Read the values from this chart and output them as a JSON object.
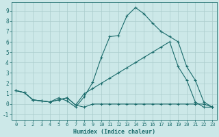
{
  "xlabel": "Humidex (Indice chaleur)",
  "bg_color": "#cce8e8",
  "grid_color": "#aacccc",
  "line_color": "#1a6b6b",
  "xlim": [
    -0.5,
    23.5
  ],
  "ylim": [
    -1.5,
    9.8
  ],
  "xticks": [
    0,
    1,
    2,
    3,
    4,
    5,
    6,
    7,
    8,
    9,
    10,
    11,
    12,
    13,
    14,
    15,
    16,
    17,
    18,
    19,
    20,
    21,
    22,
    23
  ],
  "yticks": [
    -1,
    0,
    1,
    2,
    3,
    4,
    5,
    6,
    7,
    8,
    9
  ],
  "line1_x": [
    0,
    1,
    2,
    3,
    4,
    5,
    6,
    7,
    8,
    9,
    10,
    11,
    12,
    13,
    14,
    15,
    16,
    17,
    18,
    19,
    20,
    21,
    22,
    23
  ],
  "line1_y": [
    1.3,
    1.1,
    0.4,
    0.3,
    0.2,
    0.6,
    0.3,
    -0.3,
    0.7,
    2.1,
    4.5,
    6.5,
    6.6,
    8.5,
    9.3,
    8.7,
    7.8,
    7.0,
    6.5,
    6.0,
    3.6,
    2.3,
    0.2,
    -0.3
  ],
  "line2_x": [
    0,
    1,
    2,
    3,
    4,
    5,
    6,
    7,
    8,
    9,
    10,
    11,
    12,
    13,
    14,
    15,
    16,
    17,
    18,
    19,
    20,
    21,
    22,
    23
  ],
  "line2_y": [
    1.3,
    1.1,
    0.4,
    0.3,
    0.2,
    0.4,
    0.6,
    -0.1,
    -0.3,
    0.0,
    0.0,
    0.0,
    0.0,
    0.0,
    0.0,
    0.0,
    0.0,
    0.0,
    0.0,
    0.0,
    0.0,
    0.0,
    0.0,
    -0.3
  ],
  "line3_x": [
    0,
    1,
    2,
    3,
    4,
    5,
    6,
    7,
    8,
    9,
    10,
    11,
    12,
    13,
    14,
    15,
    16,
    17,
    18,
    19,
    20,
    21,
    22,
    23
  ],
  "line3_y": [
    1.3,
    1.1,
    0.4,
    0.3,
    0.2,
    0.4,
    0.6,
    -0.1,
    1.0,
    1.5,
    2.0,
    2.5,
    3.0,
    3.5,
    4.0,
    4.5,
    5.0,
    5.5,
    6.0,
    3.6,
    2.3,
    0.2,
    -0.3,
    -0.3
  ]
}
